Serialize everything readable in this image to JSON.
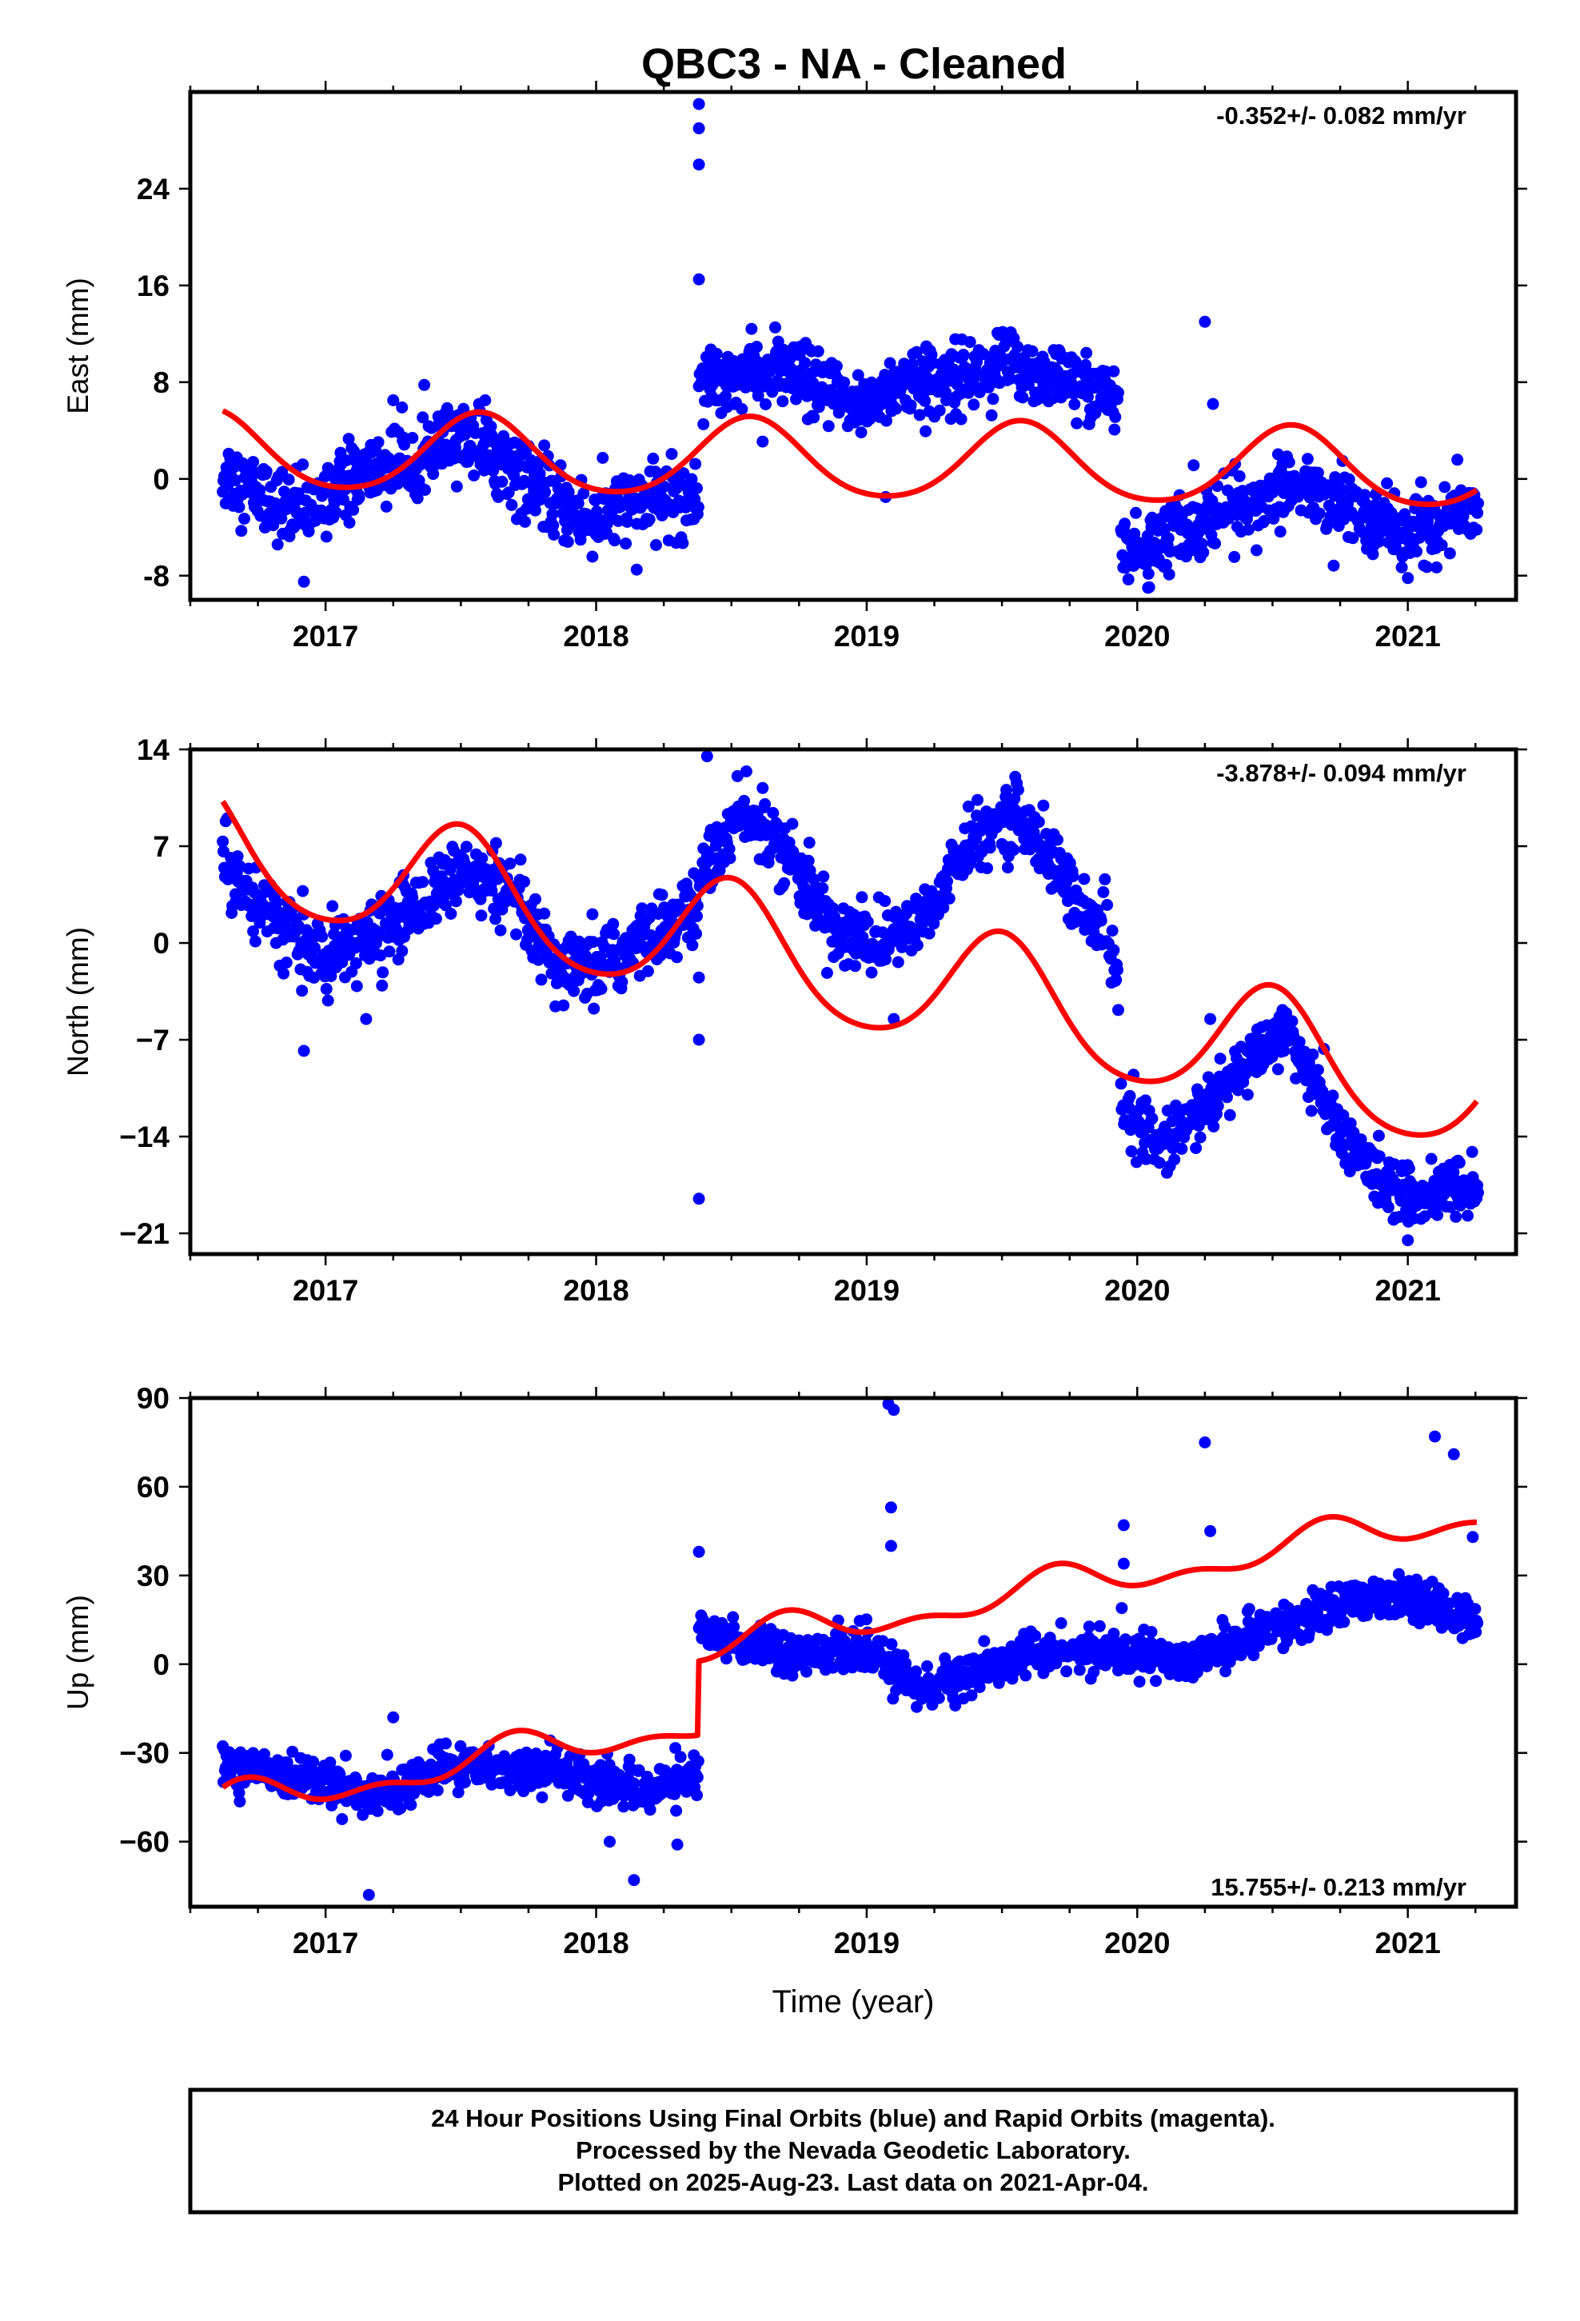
{
  "title": "QBC3  - NA - Cleaned",
  "footer": {
    "lines": [
      "24 Hour Positions Using Final Orbits (blue) and Rapid Orbits (magenta).",
      "Processed by the Nevada Geodetic Laboratory.",
      "Plotted on 2025-Aug-23. Last data on 2021-Apr-04."
    ]
  },
  "colors": {
    "data": "#0000ff",
    "model": "#ff0000",
    "frame": "#000000"
  },
  "chart_data": [
    {
      "type": "scatter",
      "panel": "east",
      "ylabel": "East (mm)",
      "xlabel": "",
      "rate_label": "-0.352+/- 0.082 mm/yr",
      "rate_position": "top-right",
      "xlim": [
        2016.5,
        2021.4
      ],
      "ylim": [
        -10,
        32
      ],
      "xticks": [
        2017,
        2018,
        2019,
        2020,
        2021
      ],
      "xtick_labels": [
        "2017",
        "2018",
        "2019",
        "2020",
        "2021"
      ],
      "yticks": [
        -8,
        0,
        8,
        16,
        24
      ],
      "ytick_labels": [
        "-8",
        "0",
        "8",
        "16",
        "24"
      ],
      "series": [
        {
          "name": "Final Orbits",
          "kind": "points",
          "segments": [
            {
              "x_range": [
                2016.62,
                2018.38
              ],
              "trend": [
                [
                  2016.62,
                  0.5
                ],
                [
                  2016.9,
                  -3
                ],
                [
                  2017.1,
                  0
                ],
                [
                  2017.55,
                  3.5
                ],
                [
                  2017.85,
                  -2
                ],
                [
                  2018.0,
                  -3.5
                ],
                [
                  2018.15,
                  -1.5
                ],
                [
                  2018.38,
                  -1.5
                ]
              ],
              "scatter": 1.5
            },
            {
              "x_range": [
                2018.38,
                2019.93
              ],
              "trend": [
                [
                  2018.38,
                  8.5
                ],
                [
                  2018.7,
                  8.8
                ],
                [
                  2018.95,
                  6.0
                ],
                [
                  2019.1,
                  7.5
                ],
                [
                  2019.55,
                  9.5
                ],
                [
                  2019.93,
                  6.5
                ]
              ],
              "scatter": 1.4
            },
            {
              "x_range": [
                2019.94,
                2021.26
              ],
              "trend": [
                [
                  2019.94,
                  -6.5
                ],
                [
                  2020.05,
                  -5.5
                ],
                [
                  2020.3,
                  -2.8
                ],
                [
                  2020.55,
                  -0.5
                ],
                [
                  2020.8,
                  -2.5
                ],
                [
                  2021.0,
                  -4.5
                ],
                [
                  2021.26,
                  -2.5
                ]
              ],
              "scatter": 1.4
            }
          ],
          "outliers": [
            [
              2018.38,
              31
            ],
            [
              2018.38,
              29
            ],
            [
              2018.38,
              26
            ],
            [
              2018.38,
              16.5
            ],
            [
              2016.92,
              -8.5
            ],
            [
              2020.25,
              13
            ],
            [
              2020.28,
              6.2
            ],
            [
              2017.25,
              6.5
            ],
            [
              2017.59,
              6.5
            ],
            [
              2019.07,
              -1.5
            ],
            [
              2018.15,
              -7.5
            ],
            [
              2020.04,
              -9
            ],
            [
              2021.0,
              -8.2
            ]
          ]
        },
        {
          "name": "Model",
          "kind": "line",
          "params": {
            "t0": 2018.5,
            "a": 1.6,
            "b": -0.352,
            "amp": 3.2,
            "phase": 2018.57,
            "amp2": 0.4
          }
        }
      ]
    },
    {
      "type": "scatter",
      "panel": "north",
      "ylabel": "North (mm)",
      "xlabel": "",
      "rate_label": "-3.878+/- 0.094 mm/yr",
      "rate_position": "top-right",
      "xlim": [
        2016.5,
        2021.4
      ],
      "ylim": [
        -22.5,
        14
      ],
      "xticks": [
        2017,
        2018,
        2019,
        2020,
        2021
      ],
      "xtick_labels": [
        "2017",
        "2018",
        "2019",
        "2020",
        "2021"
      ],
      "yticks": [
        -21,
        -14,
        -7,
        0,
        7,
        14
      ],
      "ytick_labels": [
        "−21",
        "−14",
        "−7",
        "0",
        "7",
        "14"
      ],
      "series": [
        {
          "name": "Final Orbits",
          "kind": "points",
          "segments": [
            {
              "x_range": [
                2016.62,
                2018.38
              ],
              "trend": [
                [
                  2016.62,
                  6.0
                ],
                [
                  2016.8,
                  2.0
                ],
                [
                  2017.0,
                  -1.5
                ],
                [
                  2017.25,
                  1.5
                ],
                [
                  2017.5,
                  5.0
                ],
                [
                  2017.7,
                  3.0
                ],
                [
                  2017.85,
                  -2.0
                ],
                [
                  2018.0,
                  -2.0
                ],
                [
                  2018.2,
                  0.5
                ],
                [
                  2018.38,
                  2.5
                ]
              ],
              "scatter": 1.3
            },
            {
              "x_range": [
                2018.38,
                2019.93
              ],
              "trend": [
                [
                  2018.38,
                  5.0
                ],
                [
                  2018.55,
                  9.5
                ],
                [
                  2018.7,
                  6.5
                ],
                [
                  2018.9,
                  0.5
                ],
                [
                  2019.05,
                  0.0
                ],
                [
                  2019.2,
                  1.5
                ],
                [
                  2019.35,
                  6.5
                ],
                [
                  2019.55,
                  9.5
                ],
                [
                  2019.75,
                  4.0
                ],
                [
                  2019.93,
                  -1.5
                ]
              ],
              "scatter": 1.2
            },
            {
              "x_range": [
                2019.94,
                2021.26
              ],
              "trend": [
                [
                  2019.94,
                  -12.0
                ],
                [
                  2020.1,
                  -14.5
                ],
                [
                  2020.3,
                  -11.0
                ],
                [
                  2020.55,
                  -6.0
                ],
                [
                  2020.75,
                  -14.0
                ],
                [
                  2021.0,
                  -18.5
                ],
                [
                  2021.26,
                  -17.5
                ]
              ],
              "scatter": 1.1
            }
          ],
          "outliers": [
            [
              2018.38,
              -18.5
            ],
            [
              2018.38,
              -7
            ],
            [
              2018.38,
              -2.5
            ],
            [
              2018.41,
              13.5
            ],
            [
              2016.92,
              -7.8
            ],
            [
              2017.15,
              -5.5
            ],
            [
              2019.1,
              -5.5
            ],
            [
              2020.27,
              -5.5
            ],
            [
              2021.0,
              -21.5
            ]
          ]
        },
        {
          "name": "Model",
          "kind": "line",
          "params": {
            "t0": 2018.5,
            "a": -0.3,
            "b": -3.878,
            "amp": 4.4,
            "phase": 2018.5,
            "amp2": 0.6
          }
        }
      ]
    },
    {
      "type": "scatter",
      "panel": "up",
      "ylabel": "Up (mm)",
      "xlabel": "Time (year)",
      "rate_label": "15.755+/- 0.213 mm/yr",
      "rate_position": "bottom-right",
      "xlim": [
        2016.5,
        2021.4
      ],
      "ylim": [
        -82,
        90
      ],
      "xticks": [
        2017,
        2018,
        2019,
        2020,
        2021
      ],
      "xtick_labels": [
        "2017",
        "2018",
        "2019",
        "2020",
        "2021"
      ],
      "yticks": [
        -60,
        -30,
        0,
        30,
        60,
        90
      ],
      "ytick_labels": [
        "−60",
        "−30",
        "0",
        "30",
        "60",
        "90"
      ],
      "series": [
        {
          "name": "Final Orbits",
          "kind": "points",
          "segments": [
            {
              "x_range": [
                2016.62,
                2018.38
              ],
              "trend": [
                [
                  2016.62,
                  -35
                ],
                [
                  2016.9,
                  -38
                ],
                [
                  2017.2,
                  -45
                ],
                [
                  2017.45,
                  -35
                ],
                [
                  2017.8,
                  -35
                ],
                [
                  2018.2,
                  -43
                ],
                [
                  2018.38,
                  -37
                ]
              ],
              "scatter": 3.5
            },
            {
              "x_range": [
                2018.38,
                2019.93
              ],
              "trend": [
                [
                  2018.38,
                  10
                ],
                [
                  2018.7,
                  5
                ],
                [
                  2019.0,
                  4
                ],
                [
                  2019.2,
                  -8
                ],
                [
                  2019.35,
                  -5
                ],
                [
                  2019.6,
                  4
                ],
                [
                  2019.93,
                  4
                ]
              ],
              "scatter": 3.5
            },
            {
              "x_range": [
                2019.94,
                2021.26
              ],
              "trend": [
                [
                  2019.94,
                  4
                ],
                [
                  2020.2,
                  2
                ],
                [
                  2020.5,
                  12
                ],
                [
                  2020.8,
                  22
                ],
                [
                  2021.0,
                  22
                ],
                [
                  2021.26,
                  14
                ]
              ],
              "scatter": 3.5
            }
          ],
          "outliers": [
            [
              2019.08,
              88
            ],
            [
              2019.1,
              86
            ],
            [
              2019.09,
              53
            ],
            [
              2019.09,
              40
            ],
            [
              2020.25,
              75
            ],
            [
              2020.27,
              45
            ],
            [
              2019.95,
              47
            ],
            [
              2019.95,
              34
            ],
            [
              2021.1,
              77
            ],
            [
              2021.17,
              71
            ],
            [
              2021.24,
              43
            ],
            [
              2018.38,
              38
            ],
            [
              2017.16,
              -78
            ],
            [
              2018.14,
              -73
            ],
            [
              2017.25,
              -18
            ],
            [
              2018.3,
              -61
            ],
            [
              2018.05,
              -60
            ]
          ]
        },
        {
          "name": "Model",
          "kind": "line",
          "params": {
            "t0": 2018.5,
            "a": -18,
            "b": 15.755,
            "amp": 5,
            "phase": 2017.7,
            "amp2": 3,
            "offsets": [
              [
                2018.38,
                25
              ]
            ]
          }
        }
      ]
    }
  ]
}
